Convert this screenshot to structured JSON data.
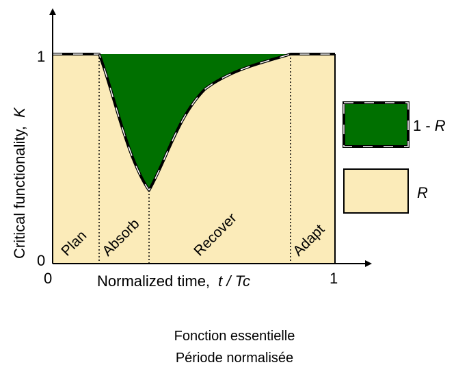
{
  "y_axis_label": "Critical functionality,",
  "y_axis_symbol": "K",
  "x_axis_label": "Normalized time,",
  "x_axis_symbol": "t / Tc",
  "y_ticks": [
    "1",
    "0"
  ],
  "x_ticks": [
    "0",
    "1"
  ],
  "phases": [
    "Plan",
    "Absorb",
    "Recover",
    "Adapt"
  ],
  "legend": [
    {
      "label": "1 - ",
      "symbol": "R",
      "color": "#007000"
    },
    {
      "label": "",
      "symbol": "R",
      "color": "#fbebb9"
    }
  ],
  "caption_lines": [
    "Fonction essentielle",
    "Période normalisée"
  ],
  "colors": {
    "area_fill": "#fbebb9",
    "loss_fill": "#007000"
  }
}
